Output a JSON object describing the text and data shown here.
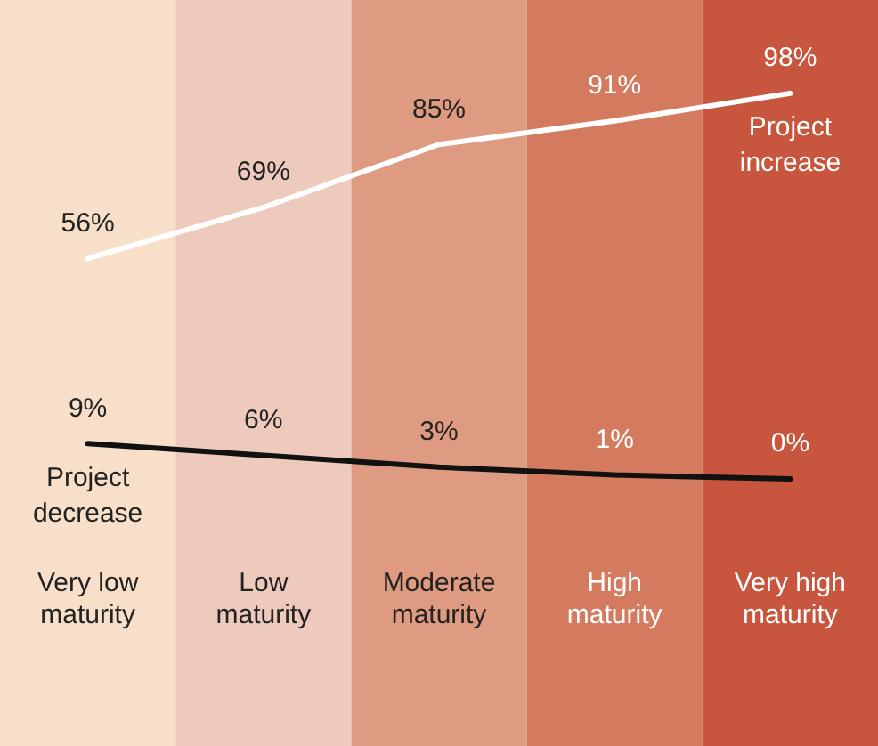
{
  "chart_data": {
    "type": "line",
    "categories": [
      "Very low maturity",
      "Low maturity",
      "Moderate maturity",
      "High maturity",
      "Very high maturity"
    ],
    "series": [
      {
        "name": "Project increase",
        "color": "#ffffff",
        "values": [
          56,
          69,
          85,
          91,
          98
        ],
        "value_labels": [
          "56%",
          "69%",
          "85%",
          "91%",
          "98%"
        ]
      },
      {
        "name": "Project decrease",
        "color": "#111111",
        "values": [
          9,
          6,
          3,
          1,
          0
        ],
        "value_labels": [
          "9%",
          "6%",
          "3%",
          "1%",
          "0%"
        ]
      }
    ],
    "bands": [
      {
        "axis": "x",
        "from": "Very low maturity",
        "to": "Very low maturity",
        "color": "#f7dfc9"
      },
      {
        "axis": "x",
        "from": "Low maturity",
        "to": "Low maturity",
        "color": "#edcabb"
      },
      {
        "axis": "x",
        "from": "Moderate maturity",
        "to": "Moderate maturity",
        "color": "#df9b81"
      },
      {
        "axis": "x",
        "from": "High maturity",
        "to": "High maturity",
        "color": "#d47a5e"
      },
      {
        "axis": "x",
        "from": "Very high maturity",
        "to": "Very high maturity",
        "color": "#c8553d"
      }
    ],
    "legend": false,
    "grid": false,
    "marker": "none",
    "line_style": "solid",
    "tick_labels": "x"
  }
}
